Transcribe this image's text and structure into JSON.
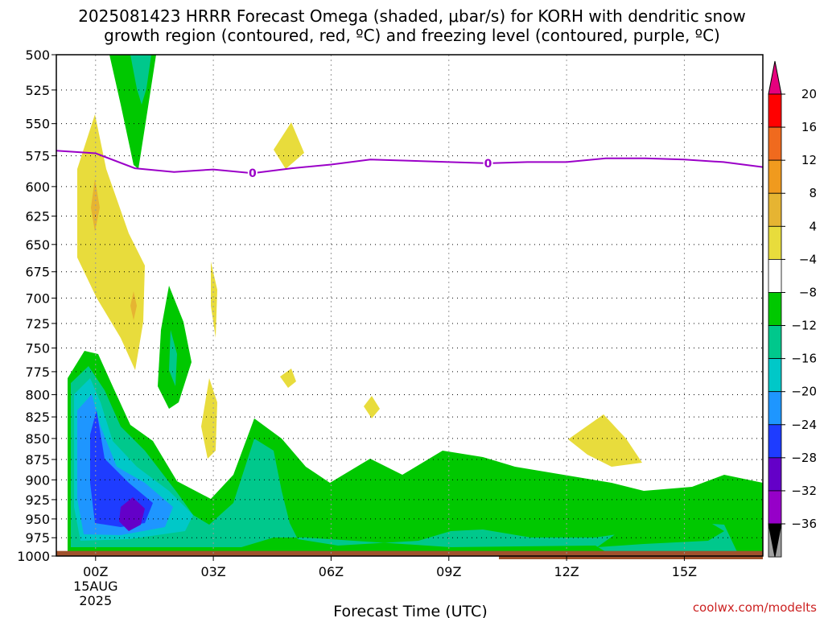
{
  "chart_data": {
    "type": "heatmap",
    "title_line1": "2025081423 HRRR Forecast Omega (shaded, μbar/s) for KORH with dendritic snow",
    "title_line2": "growth region (contoured, red, ºC) and freezing level (contoured, purple, ºC)",
    "xlabel": "Forecast Time (UTC)",
    "x_ticks": [
      {
        "hour": 0,
        "label": "00Z",
        "sub1": "15AUG",
        "sub2": "2025"
      },
      {
        "hour": 3,
        "label": "03Z"
      },
      {
        "hour": 6,
        "label": "06Z"
      },
      {
        "hour": 9,
        "label": "09Z"
      },
      {
        "hour": 12,
        "label": "12Z"
      },
      {
        "hour": 15,
        "label": "15Z"
      }
    ],
    "xlim": [
      -1,
      17
    ],
    "y_levels": [
      500,
      525,
      550,
      575,
      600,
      625,
      650,
      675,
      700,
      725,
      750,
      775,
      800,
      825,
      850,
      875,
      900,
      925,
      950,
      975,
      1000
    ],
    "ylim": [
      500,
      1000
    ],
    "grid": true,
    "colorbar": {
      "labels": [
        "20",
        "16",
        "12",
        "8",
        "4",
        "−4",
        "−8",
        "−12",
        "−16",
        "−20",
        "−24",
        "−28",
        "−32",
        "−36"
      ],
      "colors": [
        "#ff0000",
        "#f06a1e",
        "#f09a1e",
        "#e6b432",
        "#e8dc3c",
        "#ffffff",
        "#00c800",
        "#00c88c",
        "#00c8c8",
        "#1e96ff",
        "#1e3cff",
        "#6400c8",
        "#9600c8",
        "#a0a0a0"
      ],
      "top_color": "#e6007e",
      "bottom_color": "#000000"
    },
    "freezing_level": {
      "color": "#9b00c8",
      "label": "0",
      "points": [
        [
          -1,
          571
        ],
        [
          0,
          573
        ],
        [
          1,
          585
        ],
        [
          2,
          588
        ],
        [
          3,
          586
        ],
        [
          4,
          589
        ],
        [
          5,
          585
        ],
        [
          6,
          582
        ],
        [
          7,
          578
        ],
        [
          8,
          579
        ],
        [
          9,
          580
        ],
        [
          10,
          581
        ],
        [
          11,
          580
        ],
        [
          12,
          580
        ],
        [
          13,
          577
        ],
        [
          14,
          577
        ],
        [
          15,
          578
        ],
        [
          16,
          580
        ],
        [
          17,
          584
        ]
      ],
      "label_positions": [
        4,
        10
      ]
    },
    "ground": {
      "color": "#a0522d",
      "surface_pressure": 993
    },
    "credit": "coolwx.com/modelts"
  }
}
